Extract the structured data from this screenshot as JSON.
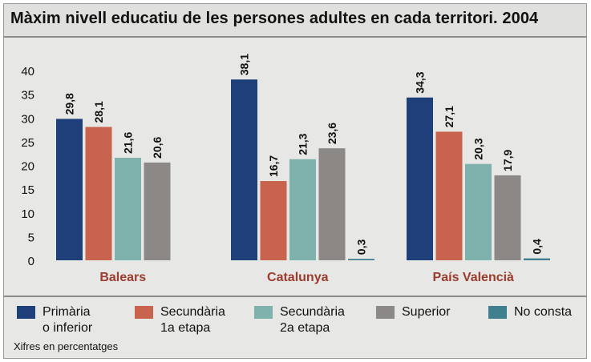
{
  "title": "Màxim nivell educatiu de les persones adultes en cada territori. 2004",
  "note": "Xifres en percentatges",
  "colors": {
    "primaria": "#1f3f7a",
    "secundaria1": "#c8634d",
    "secundaria2": "#7fb1ad",
    "superior": "#8b8886",
    "no_consta": "#3f7f90",
    "category_label": "#9b3b2e"
  },
  "legend": [
    {
      "label": "Primària\no inferior",
      "color": "#1f3f7a"
    },
    {
      "label": "Secundària\n1a etapa",
      "color": "#c8634d"
    },
    {
      "label": "Secundària\n2a etapa",
      "color": "#7fb1ad"
    },
    {
      "label": "Superior",
      "color": "#8b8886"
    },
    {
      "label": "No consta",
      "color": "#3f7f90"
    }
  ],
  "chart_data": {
    "type": "bar",
    "title": "Màxim nivell educatiu de les persones adultes en cada territori. 2004",
    "categories": [
      "Balears",
      "Catalunya",
      "País Valencià"
    ],
    "series": [
      {
        "name": "Primària o inferior",
        "values": [
          29.8,
          38.1,
          34.3
        ],
        "labels": [
          "29,8",
          "38,1",
          "34,3"
        ]
      },
      {
        "name": "Secundària 1a etapa",
        "values": [
          28.1,
          16.7,
          27.1
        ],
        "labels": [
          "28,1",
          "16,7",
          "27,1"
        ]
      },
      {
        "name": "Secundària 2a etapa",
        "values": [
          21.6,
          21.3,
          20.3
        ],
        "labels": [
          "21,6",
          "21,3",
          "20,3"
        ]
      },
      {
        "name": "Superior",
        "values": [
          20.6,
          23.6,
          17.9
        ],
        "labels": [
          "20,6",
          "23,6",
          "17,9"
        ]
      },
      {
        "name": "No consta",
        "values": [
          null,
          0.3,
          0.4
        ],
        "labels": [
          null,
          "0,3",
          "0,4"
        ]
      }
    ],
    "ylim": [
      0,
      40
    ],
    "yticks": [
      0,
      5,
      10,
      15,
      20,
      25,
      30,
      35,
      40
    ],
    "xlabel": "",
    "ylabel": "",
    "grid": false,
    "legend_position": "bottom"
  }
}
